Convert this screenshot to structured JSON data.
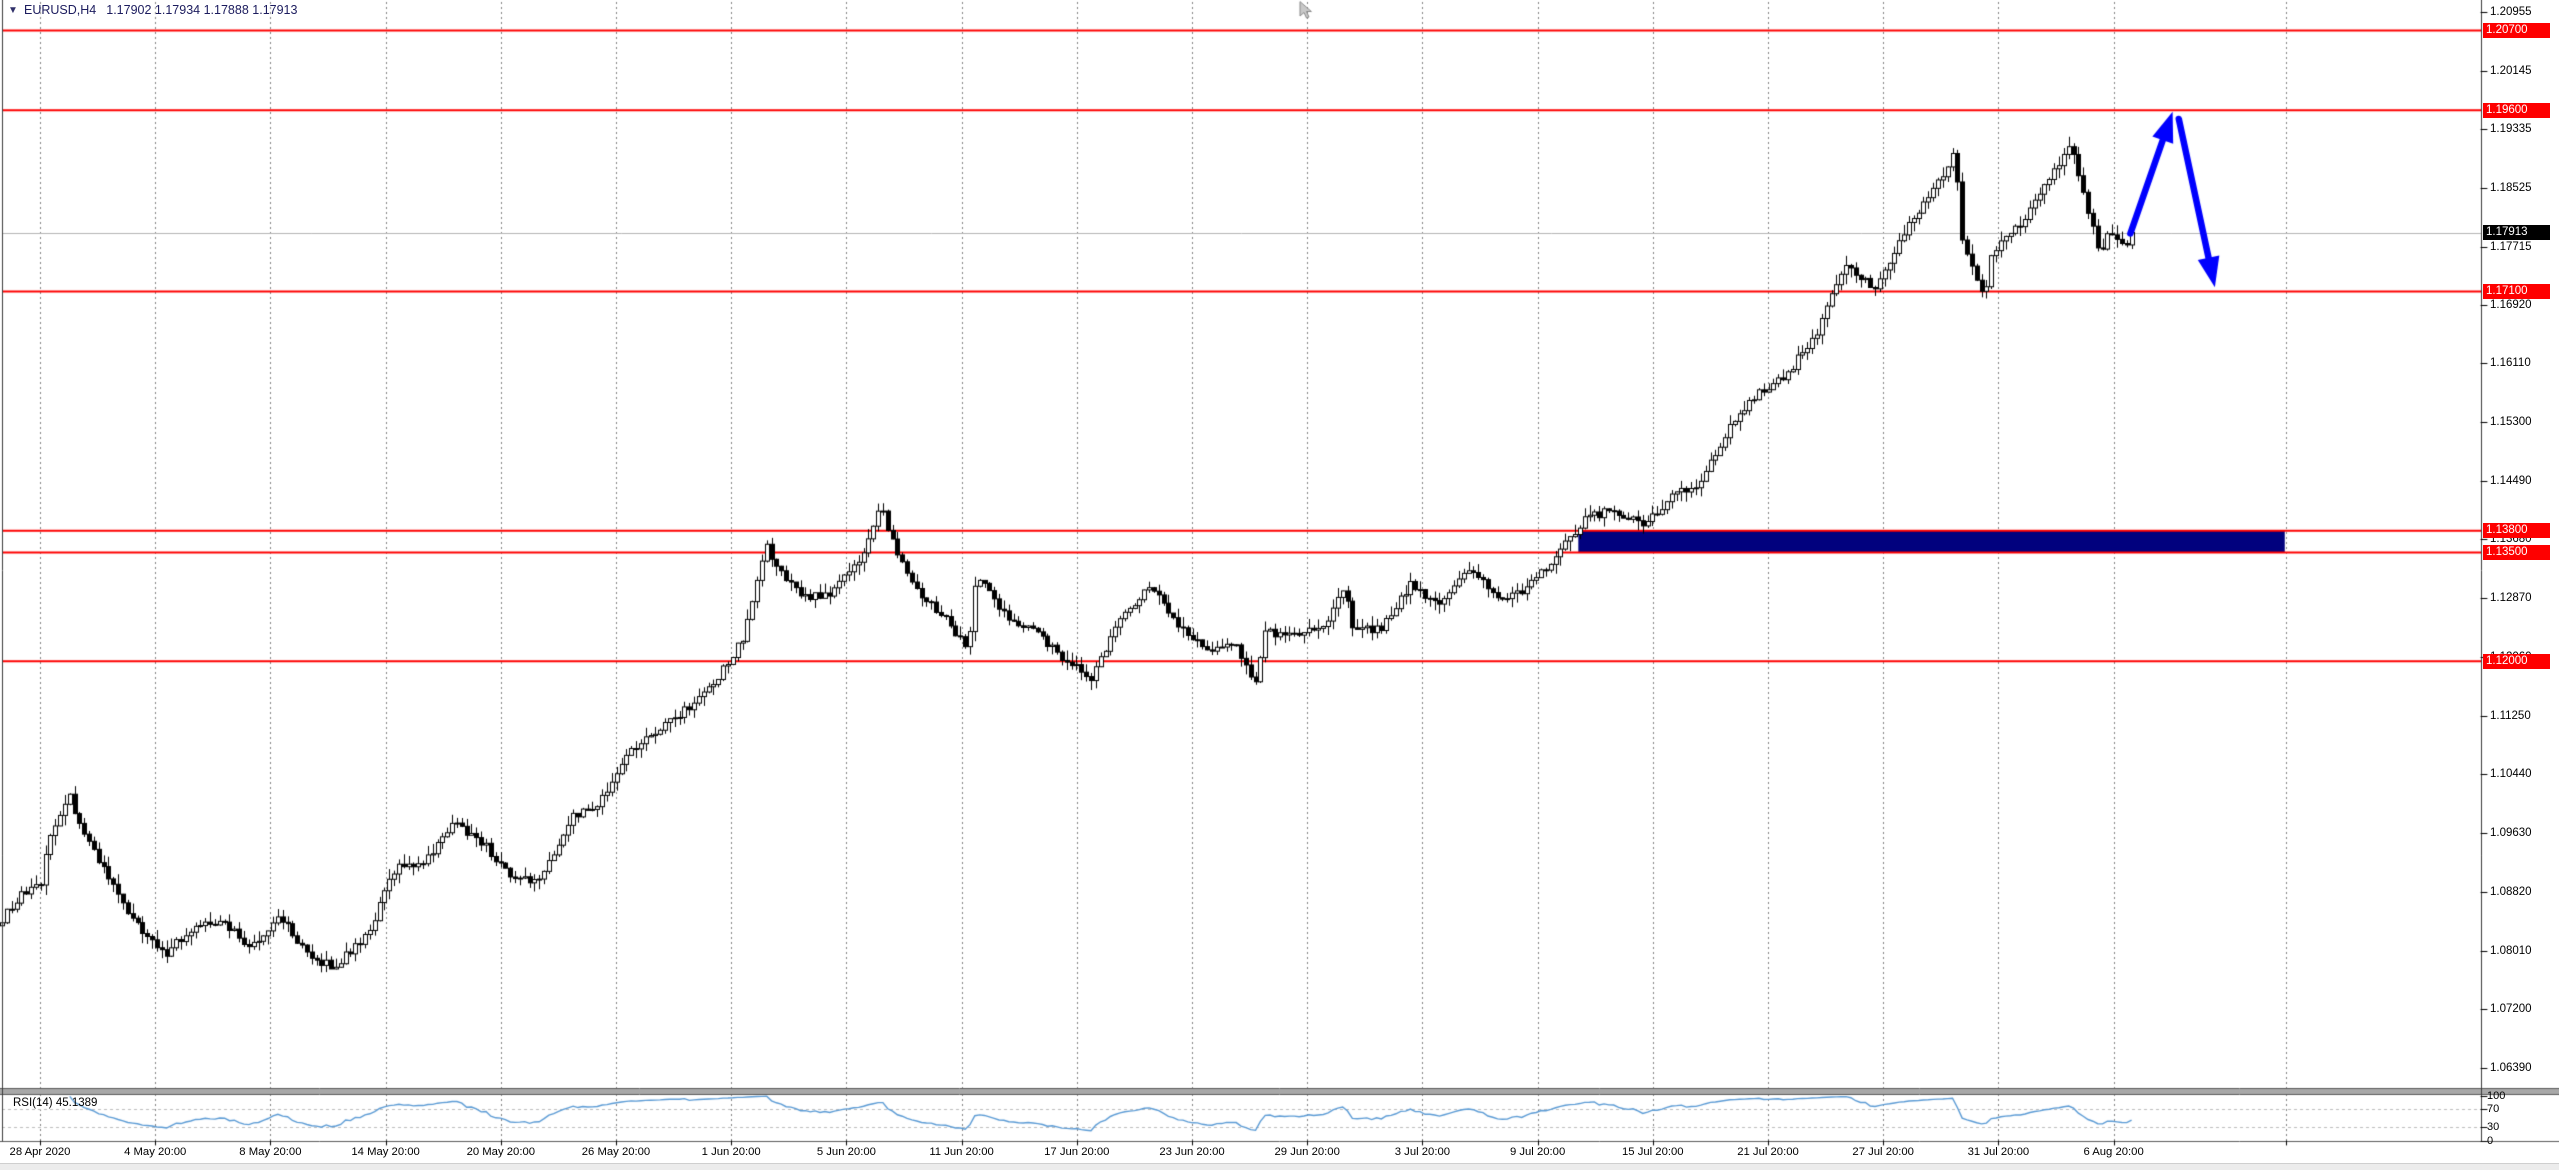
{
  "window": {
    "symbol_period": "EURUSD,H4",
    "quote_open": "1.17902",
    "quote_high": "1.17934",
    "quote_low": "1.17888",
    "quote_close": "1.17913"
  },
  "chart_data": {
    "type": "candlestick",
    "title": "EURUSD,H4",
    "symbol": "EURUSD",
    "timeframe": "H4",
    "current_price": 1.17913,
    "current_price_badge": "1.17913",
    "y_axis": {
      "side": "right",
      "top_price": 1.20955,
      "bottom_price": 1.0639,
      "tick_labels": [
        "1.20955",
        "1.20145",
        "1.19335",
        "1.18525",
        "1.17715",
        "1.16920",
        "1.16110",
        "1.15300",
        "1.14490",
        "1.13680",
        "1.12870",
        "1.12060",
        "1.11250",
        "1.10440",
        "1.09630",
        "1.08820",
        "1.08010",
        "1.07200",
        "1.06390"
      ]
    },
    "x_axis": {
      "labels": [
        "28 Apr 2020",
        "4 May 20:00",
        "8 May 20:00",
        "14 May 20:00",
        "20 May 20:00",
        "26 May 20:00",
        "1 Jun 20:00",
        "5 Jun 20:00",
        "11 Jun 20:00",
        "17 Jun 20:00",
        "23 Jun 20:00",
        "29 Jun 20:00",
        "3 Jul 20:00",
        "9 Jul 20:00",
        "15 Jul 20:00",
        "21 Jul 20:00",
        "27 Jul 20:00",
        "31 Jul 20:00",
        "6 Aug 20:00"
      ],
      "extra_separators": 1
    },
    "levels": [
      {
        "price": 1.207,
        "label": "1.20700",
        "color": "#FE0000"
      },
      {
        "price": 1.196,
        "label": "1.19600",
        "color": "#FE0000"
      },
      {
        "price": 1.171,
        "label": "1.17100",
        "color": "#FE0000"
      },
      {
        "price": 1.138,
        "label": "1.13800",
        "color": "#FE0000"
      },
      {
        "price": 1.135,
        "label": "1.13500",
        "color": "#FE0000"
      },
      {
        "price": 1.12,
        "label": "1.12000",
        "color": "#FE0000"
      }
    ],
    "rectangle": {
      "price_top": 1.138,
      "price_bottom": 1.135,
      "x_from_frac": 0.639,
      "x_to_frac": 0.925,
      "color": "#01017E"
    },
    "arrow": {
      "color": "#0000FE",
      "up_segment": {
        "x_from_frac": 0.8625,
        "price_from": 1.179,
        "x_to_frac": 0.8796,
        "price_to": 1.1958
      },
      "down_segment": {
        "x_from_frac": 0.8821,
        "price_from": 1.1948,
        "x_to_frac": 0.8967,
        "price_to": 1.1716
      }
    },
    "price_path": [
      [
        -40,
        1.08
      ],
      [
        -10,
        1.0822
      ],
      [
        19,
        1.0875
      ],
      [
        41,
        1.089
      ],
      [
        48,
        1.0955
      ],
      [
        70,
        1.1015
      ],
      [
        77,
        1.098
      ],
      [
        106,
        1.0906
      ],
      [
        135,
        1.0838
      ],
      [
        164,
        1.0795
      ],
      [
        193,
        1.0834
      ],
      [
        222,
        1.0839
      ],
      [
        251,
        1.0807
      ],
      [
        280,
        1.0849
      ],
      [
        309,
        1.079
      ],
      [
        338,
        1.0778
      ],
      [
        346,
        1.0796
      ],
      [
        367,
        1.082
      ],
      [
        396,
        1.0917
      ],
      [
        425,
        1.0924
      ],
      [
        454,
        1.0977
      ],
      [
        483,
        1.0949
      ],
      [
        512,
        1.09
      ],
      [
        541,
        1.0897
      ],
      [
        570,
        1.0983
      ],
      [
        599,
        1.1002
      ],
      [
        628,
        1.1076
      ],
      [
        657,
        1.1101
      ],
      [
        686,
        1.1134
      ],
      [
        715,
        1.117
      ],
      [
        744,
        1.1234
      ],
      [
        766,
        1.136
      ],
      [
        773,
        1.1337
      ],
      [
        802,
        1.1289
      ],
      [
        831,
        1.1293
      ],
      [
        860,
        1.1341
      ],
      [
        882,
        1.1418
      ],
      [
        889,
        1.1374
      ],
      [
        918,
        1.1298
      ],
      [
        947,
        1.1256
      ],
      [
        968,
        1.1215
      ],
      [
        976,
        1.1323
      ],
      [
        1005,
        1.1264
      ],
      [
        1034,
        1.1243
      ],
      [
        1063,
        1.1205
      ],
      [
        1092,
        1.1177
      ],
      [
        1121,
        1.126
      ],
      [
        1150,
        1.1307
      ],
      [
        1179,
        1.1251
      ],
      [
        1208,
        1.1217
      ],
      [
        1237,
        1.1219
      ],
      [
        1255,
        1.1172
      ],
      [
        1266,
        1.1241
      ],
      [
        1295,
        1.1234
      ],
      [
        1324,
        1.1251
      ],
      [
        1345,
        1.13
      ],
      [
        1353,
        1.1239
      ],
      [
        1382,
        1.1248
      ],
      [
        1411,
        1.1308
      ],
      [
        1440,
        1.1274
      ],
      [
        1469,
        1.1329
      ],
      [
        1498,
        1.1284
      ],
      [
        1527,
        1.1301
      ],
      [
        1556,
        1.1344
      ],
      [
        1585,
        1.1396
      ],
      [
        1614,
        1.141
      ],
      [
        1643,
        1.1385
      ],
      [
        1672,
        1.1428
      ],
      [
        1701,
        1.1446
      ],
      [
        1730,
        1.1526
      ],
      [
        1759,
        1.1571
      ],
      [
        1788,
        1.1598
      ],
      [
        1817,
        1.1655
      ],
      [
        1846,
        1.175
      ],
      [
        1875,
        1.1712
      ],
      [
        1904,
        1.179
      ],
      [
        1933,
        1.1847
      ],
      [
        1955,
        1.1905
      ],
      [
        1962,
        1.1778
      ],
      [
        1984,
        1.17
      ],
      [
        1991,
        1.1762
      ],
      [
        2020,
        1.1803
      ],
      [
        2049,
        1.1862
      ],
      [
        2071,
        1.1912
      ],
      [
        2078,
        1.1873
      ],
      [
        2100,
        1.1758
      ],
      [
        2107,
        1.1787
      ],
      [
        2125,
        1.1775
      ],
      [
        2136,
        1.17913
      ]
    ],
    "candle_colors": {
      "bull_fill": "#ffffff",
      "bear_fill": "#000000",
      "outline": "#000000"
    },
    "rsi": {
      "name_label": "RSI(14)",
      "value_label": "45.1389",
      "period": 14,
      "scale_labels": [
        "100",
        "70",
        "30",
        "0"
      ],
      "scale_values": [
        100,
        70,
        30,
        0
      ],
      "guide_levels": [
        70,
        30
      ],
      "line_color": "#5B9BD5"
    }
  }
}
